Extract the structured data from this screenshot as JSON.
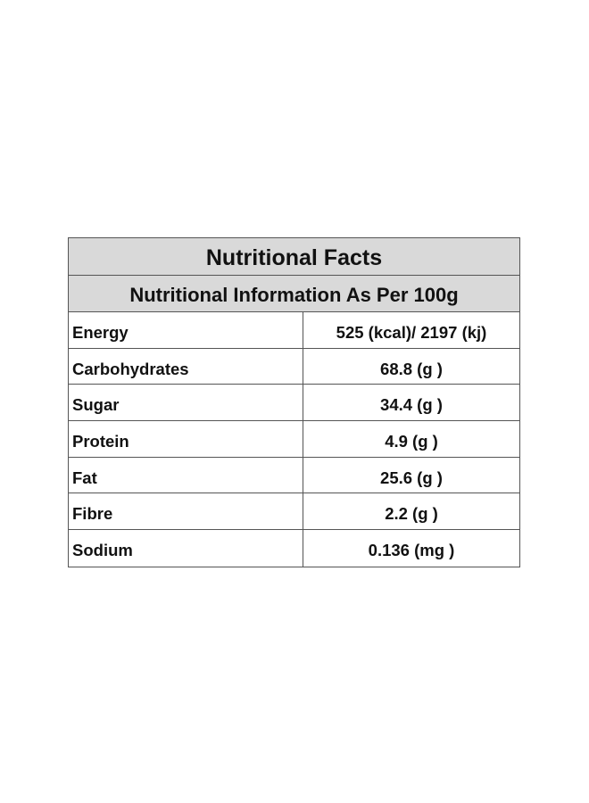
{
  "title": "Nutritional Facts",
  "subtitle": "Nutritional Information As Per 100g",
  "rows": [
    {
      "name": "Energy",
      "value": "525 (kcal)/ 2197 (kj)"
    },
    {
      "name": "Carbohydrates",
      "value": "68.8 (g )"
    },
    {
      "name": "Sugar",
      "value": "34.4 (g )"
    },
    {
      "name": "Protein",
      "value": "4.9 (g )"
    },
    {
      "name": "Fat",
      "value": "25.6 (g )"
    },
    {
      "name": "Fibre",
      "value": "2.2 (g )"
    },
    {
      "name": "Sodium",
      "value": "0.136 (mg )"
    }
  ],
  "colors": {
    "header_background": "#d9d9d9",
    "border": "#555555",
    "text": "#111111"
  }
}
